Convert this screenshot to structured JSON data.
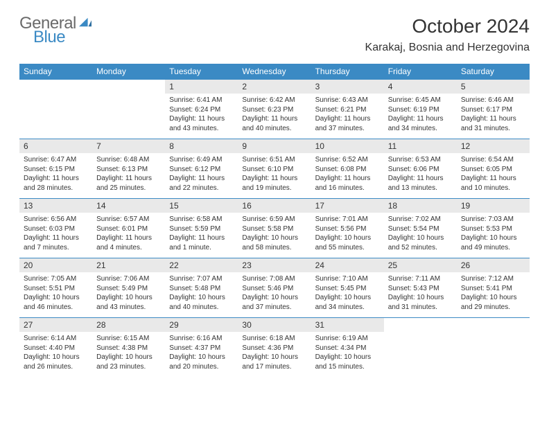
{
  "brand": {
    "word1": "General",
    "word2": "Blue"
  },
  "title": {
    "month": "October 2024",
    "location": "Karakaj, Bosnia and Herzegovina"
  },
  "theme": {
    "header_bg": "#3b8ac4",
    "header_fg": "#ffffff",
    "daynum_bg": "#e9e9e9",
    "row_border": "#3b8ac4",
    "text_color": "#333333",
    "logo_gray": "#6a6a6a",
    "logo_blue": "#3b8ac4",
    "background": "#ffffff"
  },
  "fonts": {
    "month_size_pt": 21,
    "location_size_pt": 12,
    "dayheader_size_pt": 9,
    "daynum_size_pt": 9,
    "body_size_pt": 7.5
  },
  "columns": [
    "Sunday",
    "Monday",
    "Tuesday",
    "Wednesday",
    "Thursday",
    "Friday",
    "Saturday"
  ],
  "weeks": [
    [
      {
        "n": "",
        "sr": "",
        "ss": "",
        "dl": ""
      },
      {
        "n": "",
        "sr": "",
        "ss": "",
        "dl": ""
      },
      {
        "n": "1",
        "sr": "Sunrise: 6:41 AM",
        "ss": "Sunset: 6:24 PM",
        "dl": "Daylight: 11 hours and 43 minutes."
      },
      {
        "n": "2",
        "sr": "Sunrise: 6:42 AM",
        "ss": "Sunset: 6:23 PM",
        "dl": "Daylight: 11 hours and 40 minutes."
      },
      {
        "n": "3",
        "sr": "Sunrise: 6:43 AM",
        "ss": "Sunset: 6:21 PM",
        "dl": "Daylight: 11 hours and 37 minutes."
      },
      {
        "n": "4",
        "sr": "Sunrise: 6:45 AM",
        "ss": "Sunset: 6:19 PM",
        "dl": "Daylight: 11 hours and 34 minutes."
      },
      {
        "n": "5",
        "sr": "Sunrise: 6:46 AM",
        "ss": "Sunset: 6:17 PM",
        "dl": "Daylight: 11 hours and 31 minutes."
      }
    ],
    [
      {
        "n": "6",
        "sr": "Sunrise: 6:47 AM",
        "ss": "Sunset: 6:15 PM",
        "dl": "Daylight: 11 hours and 28 minutes."
      },
      {
        "n": "7",
        "sr": "Sunrise: 6:48 AM",
        "ss": "Sunset: 6:13 PM",
        "dl": "Daylight: 11 hours and 25 minutes."
      },
      {
        "n": "8",
        "sr": "Sunrise: 6:49 AM",
        "ss": "Sunset: 6:12 PM",
        "dl": "Daylight: 11 hours and 22 minutes."
      },
      {
        "n": "9",
        "sr": "Sunrise: 6:51 AM",
        "ss": "Sunset: 6:10 PM",
        "dl": "Daylight: 11 hours and 19 minutes."
      },
      {
        "n": "10",
        "sr": "Sunrise: 6:52 AM",
        "ss": "Sunset: 6:08 PM",
        "dl": "Daylight: 11 hours and 16 minutes."
      },
      {
        "n": "11",
        "sr": "Sunrise: 6:53 AM",
        "ss": "Sunset: 6:06 PM",
        "dl": "Daylight: 11 hours and 13 minutes."
      },
      {
        "n": "12",
        "sr": "Sunrise: 6:54 AM",
        "ss": "Sunset: 6:05 PM",
        "dl": "Daylight: 11 hours and 10 minutes."
      }
    ],
    [
      {
        "n": "13",
        "sr": "Sunrise: 6:56 AM",
        "ss": "Sunset: 6:03 PM",
        "dl": "Daylight: 11 hours and 7 minutes."
      },
      {
        "n": "14",
        "sr": "Sunrise: 6:57 AM",
        "ss": "Sunset: 6:01 PM",
        "dl": "Daylight: 11 hours and 4 minutes."
      },
      {
        "n": "15",
        "sr": "Sunrise: 6:58 AM",
        "ss": "Sunset: 5:59 PM",
        "dl": "Daylight: 11 hours and 1 minute."
      },
      {
        "n": "16",
        "sr": "Sunrise: 6:59 AM",
        "ss": "Sunset: 5:58 PM",
        "dl": "Daylight: 10 hours and 58 minutes."
      },
      {
        "n": "17",
        "sr": "Sunrise: 7:01 AM",
        "ss": "Sunset: 5:56 PM",
        "dl": "Daylight: 10 hours and 55 minutes."
      },
      {
        "n": "18",
        "sr": "Sunrise: 7:02 AM",
        "ss": "Sunset: 5:54 PM",
        "dl": "Daylight: 10 hours and 52 minutes."
      },
      {
        "n": "19",
        "sr": "Sunrise: 7:03 AM",
        "ss": "Sunset: 5:53 PM",
        "dl": "Daylight: 10 hours and 49 minutes."
      }
    ],
    [
      {
        "n": "20",
        "sr": "Sunrise: 7:05 AM",
        "ss": "Sunset: 5:51 PM",
        "dl": "Daylight: 10 hours and 46 minutes."
      },
      {
        "n": "21",
        "sr": "Sunrise: 7:06 AM",
        "ss": "Sunset: 5:49 PM",
        "dl": "Daylight: 10 hours and 43 minutes."
      },
      {
        "n": "22",
        "sr": "Sunrise: 7:07 AM",
        "ss": "Sunset: 5:48 PM",
        "dl": "Daylight: 10 hours and 40 minutes."
      },
      {
        "n": "23",
        "sr": "Sunrise: 7:08 AM",
        "ss": "Sunset: 5:46 PM",
        "dl": "Daylight: 10 hours and 37 minutes."
      },
      {
        "n": "24",
        "sr": "Sunrise: 7:10 AM",
        "ss": "Sunset: 5:45 PM",
        "dl": "Daylight: 10 hours and 34 minutes."
      },
      {
        "n": "25",
        "sr": "Sunrise: 7:11 AM",
        "ss": "Sunset: 5:43 PM",
        "dl": "Daylight: 10 hours and 31 minutes."
      },
      {
        "n": "26",
        "sr": "Sunrise: 7:12 AM",
        "ss": "Sunset: 5:41 PM",
        "dl": "Daylight: 10 hours and 29 minutes."
      }
    ],
    [
      {
        "n": "27",
        "sr": "Sunrise: 6:14 AM",
        "ss": "Sunset: 4:40 PM",
        "dl": "Daylight: 10 hours and 26 minutes."
      },
      {
        "n": "28",
        "sr": "Sunrise: 6:15 AM",
        "ss": "Sunset: 4:38 PM",
        "dl": "Daylight: 10 hours and 23 minutes."
      },
      {
        "n": "29",
        "sr": "Sunrise: 6:16 AM",
        "ss": "Sunset: 4:37 PM",
        "dl": "Daylight: 10 hours and 20 minutes."
      },
      {
        "n": "30",
        "sr": "Sunrise: 6:18 AM",
        "ss": "Sunset: 4:36 PM",
        "dl": "Daylight: 10 hours and 17 minutes."
      },
      {
        "n": "31",
        "sr": "Sunrise: 6:19 AM",
        "ss": "Sunset: 4:34 PM",
        "dl": "Daylight: 10 hours and 15 minutes."
      },
      {
        "n": "",
        "sr": "",
        "ss": "",
        "dl": ""
      },
      {
        "n": "",
        "sr": "",
        "ss": "",
        "dl": ""
      }
    ]
  ]
}
